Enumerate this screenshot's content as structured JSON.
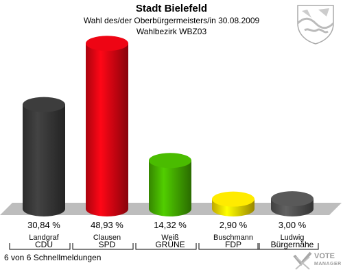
{
  "header": {
    "title": "Stadt Bielefeld",
    "subtitle": "Wahl des/der Oberbürgermeisters/in 30.08.2009",
    "district": "Wahlbezirk WBZ03"
  },
  "footer": {
    "reports": "6 von 6 Schnellmeldungen"
  },
  "branding": {
    "logo_line1": "VOTE",
    "logo_line2": "MANAGER"
  },
  "colors": {
    "CDU": "#3a3a3a",
    "SPD": "#e30513",
    "GRUENE": "#46b300",
    "FDP": "#ffe000",
    "Buergernaehe": "#555555",
    "floor": "#bdbdbd"
  },
  "chart_data": {
    "type": "bar",
    "categories": [
      "CDU",
      "SPD",
      "GRÜNE",
      "FDP",
      "Bürgernähe"
    ],
    "candidates": [
      "Landgraf",
      "Clausen",
      "Weiß",
      "Buschmann",
      "Ludwig"
    ],
    "values": [
      30.84,
      48.93,
      14.32,
      2.9,
      3.0
    ],
    "value_labels": [
      "30,84 %",
      "48,93 %",
      "14,32 %",
      "2,90 %",
      "3,00 %"
    ],
    "colors": [
      "#3a3a3a",
      "#e30513",
      "#46b300",
      "#ffe000",
      "#555555"
    ],
    "ylim": [
      0,
      50
    ],
    "grid": false,
    "legend": "none"
  }
}
